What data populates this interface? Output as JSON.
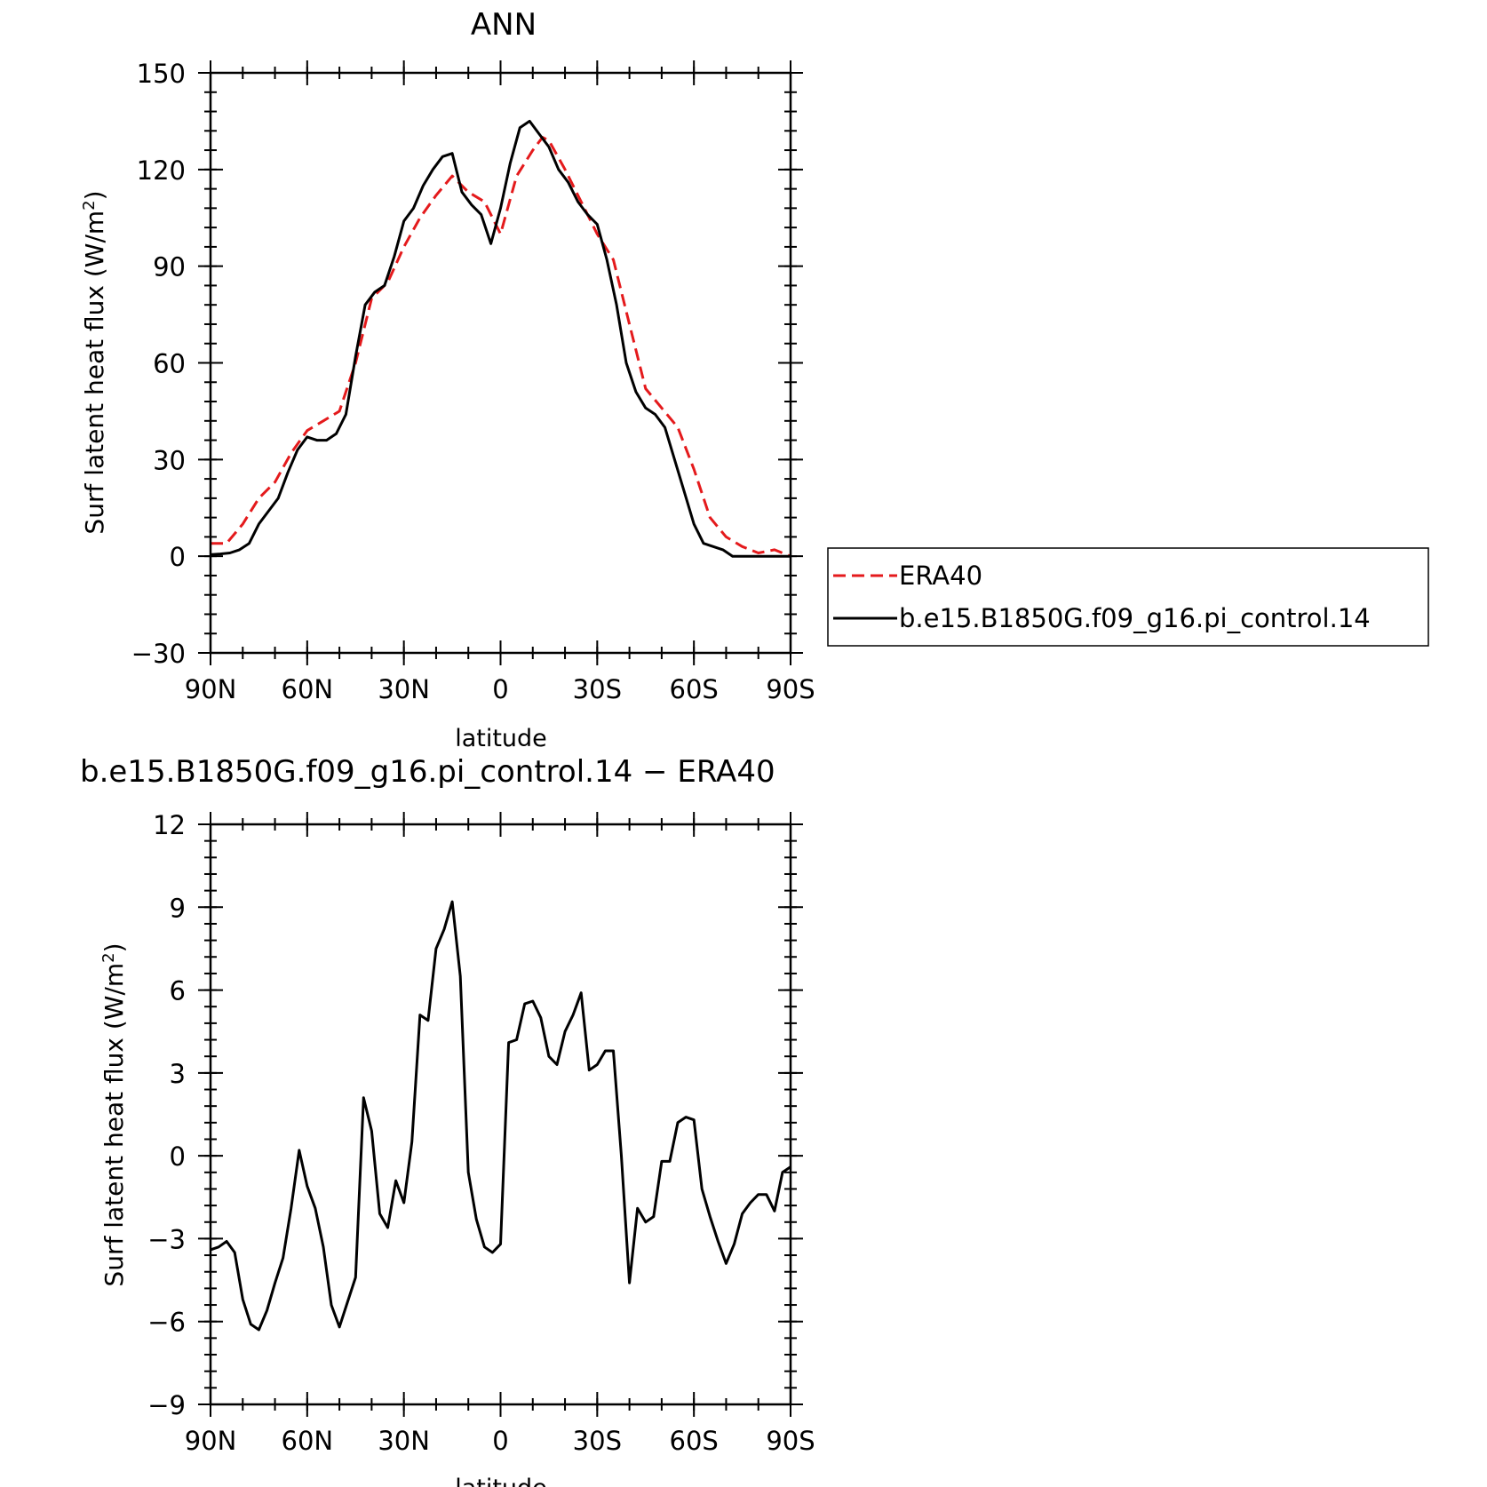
{
  "chart_data": [
    {
      "type": "line",
      "title": "ANN",
      "xlabel": "latitude",
      "ylabel": "Surf latent heat flux (W/m²)",
      "ylabel_main": "Surf latent heat flux (W/m",
      "ylabel_sup": "2",
      "ylabel_close": ")",
      "xlim": [
        90,
        -90
      ],
      "ylim": [
        -30,
        150
      ],
      "x_ticks": [
        90,
        60,
        30,
        0,
        -30,
        -60,
        -90
      ],
      "x_tick_labels": [
        "90N",
        "60N",
        "30N",
        "0",
        "30S",
        "60S",
        "90S"
      ],
      "y_ticks": [
        -30,
        0,
        30,
        60,
        90,
        120,
        150
      ],
      "y_tick_labels": [
        "−30",
        "0",
        "30",
        "60",
        "90",
        "120",
        "150"
      ],
      "legend_position": "right",
      "series": [
        {
          "name": "ERA40",
          "color": "#e41a1c",
          "style": "dashed",
          "x": [
            90,
            85,
            80,
            75,
            70,
            65,
            60,
            55,
            50,
            45,
            40,
            35,
            30,
            25,
            20,
            15,
            13,
            10,
            5,
            0,
            -5,
            -10,
            -13,
            -15,
            -20,
            -25,
            -30,
            -35,
            -40,
            -45,
            -50,
            -55,
            -60,
            -65,
            -70,
            -75,
            -80,
            -85,
            -90
          ],
          "y": [
            4,
            4,
            10,
            18,
            23,
            32,
            39,
            42,
            45,
            60,
            80,
            85,
            96,
            105,
            112,
            118,
            116,
            113,
            110,
            100,
            118,
            126,
            130,
            129,
            120,
            110,
            100,
            92,
            72,
            52,
            46,
            40,
            27,
            12,
            6,
            3,
            1,
            2,
            0
          ],
          "x_fine": [
            90,
            87,
            84,
            81,
            78,
            75,
            72,
            69,
            66,
            63,
            60,
            57,
            54,
            51,
            48,
            45,
            42,
            39,
            36,
            33,
            30,
            27,
            24,
            21,
            18,
            15,
            12,
            9,
            6,
            3,
            0,
            -3,
            -6,
            -9,
            -12,
            -15,
            -18,
            -21,
            -24,
            -27,
            -30,
            -33,
            -36,
            -39,
            -42,
            -45,
            -48,
            -51,
            -54,
            -57,
            -60,
            -63,
            -66,
            -69,
            -72,
            -75,
            -78,
            -81,
            -84,
            -87,
            -90
          ]
        },
        {
          "name": "b.e15.B1850G.f09_g16.pi_control.14",
          "color": "#000000",
          "style": "solid",
          "x": [
            90,
            87,
            84,
            81,
            78,
            75,
            72,
            69,
            66,
            63,
            60,
            57,
            54,
            51,
            48,
            45,
            42,
            39,
            36,
            33,
            30,
            27,
            24,
            21,
            18,
            15,
            12,
            9,
            6,
            3,
            0,
            -3,
            -6,
            -9,
            -12,
            -15,
            -18,
            -21,
            -24,
            -27,
            -30,
            -33,
            -36,
            -39,
            -42,
            -45,
            -48,
            -51,
            -54,
            -57,
            -60,
            -63,
            -66,
            -69,
            -72,
            -75,
            -78,
            -81,
            -84,
            -87,
            -90
          ],
          "y": [
            0.5,
            0.7,
            1,
            2,
            4,
            10,
            14,
            18,
            26,
            33,
            37,
            36,
            36,
            38,
            44,
            62,
            78,
            82,
            84,
            93,
            104,
            108,
            115,
            120,
            124,
            125,
            113,
            109,
            106,
            97,
            108,
            122,
            133,
            135,
            131,
            127,
            120,
            116,
            110,
            106,
            103,
            92,
            78,
            60,
            51,
            46,
            44,
            40,
            30,
            20,
            10,
            4,
            3,
            2,
            0,
            0,
            0,
            0,
            0,
            0,
            0
          ]
        }
      ]
    },
    {
      "type": "line",
      "title": "b.e15.B1850G.f09_g16.pi_control.14 − ERA40",
      "xlabel": "latitude",
      "ylabel": "Surf latent heat flux (W/m²)",
      "ylabel_main": "Surf latent heat flux (W/m",
      "ylabel_sup": "2",
      "ylabel_close": ")",
      "xlim": [
        90,
        -90
      ],
      "ylim": [
        -9,
        12
      ],
      "x_ticks": [
        90,
        60,
        30,
        0,
        -30,
        -60,
        -90
      ],
      "x_tick_labels": [
        "90N",
        "60N",
        "30N",
        "0",
        "30S",
        "60S",
        "90S"
      ],
      "y_ticks": [
        -9,
        -6,
        -3,
        0,
        3,
        6,
        9,
        12
      ],
      "y_tick_labels": [
        "−9",
        "−6",
        "−3",
        "0",
        "3",
        "6",
        "9",
        "12"
      ],
      "series": [
        {
          "name": "",
          "color": "#000000",
          "style": "solid",
          "x": [
            90,
            87.5,
            85,
            82.5,
            80,
            77.5,
            75,
            72.5,
            70,
            67.5,
            65,
            62.5,
            60,
            57.5,
            55,
            52.5,
            50,
            47.5,
            45,
            42.5,
            40,
            37.5,
            35,
            32.5,
            30,
            27.5,
            25,
            22.5,
            20,
            17.5,
            15,
            12.5,
            10,
            7.5,
            5,
            2.5,
            0,
            -2.5,
            -5,
            -7.5,
            -10,
            -12.5,
            -15,
            -17.5,
            -20,
            -22.5,
            -25,
            -27.5,
            -30,
            -32.5,
            -35,
            -37.5,
            -40,
            -42.5,
            -45,
            -47.5,
            -50,
            -52.5,
            -55,
            -57.5,
            -60,
            -62.5,
            -65,
            -67.5,
            -70,
            -72.5,
            -75,
            -77.5,
            -80,
            -82.5,
            -85,
            -87.5,
            -90
          ],
          "y": [
            -3.4,
            -3.3,
            -3.1,
            -3.5,
            -5.2,
            -6.1,
            -6.3,
            -5.6,
            -4.6,
            -3.7,
            -1.9,
            0.2,
            -1.1,
            -1.9,
            -3.3,
            -5.4,
            -6.2,
            -5.3,
            -4.4,
            2.1,
            0.9,
            -2.1,
            -2.6,
            -0.9,
            -1.7,
            0.5,
            5.1,
            4.9,
            7.5,
            8.2,
            9.2,
            6.5,
            -0.6,
            -2.3,
            -3.3,
            -3.5,
            -3.2,
            4.1,
            4.2,
            5.5,
            5.6,
            5.0,
            3.6,
            3.3,
            4.5,
            5.1,
            5.9,
            3.1,
            3.3,
            3.8,
            3.8,
            0.0,
            -4.6,
            -1.9,
            -2.4,
            -2.2,
            -0.2,
            -0.2,
            1.2,
            1.4,
            1.3,
            -1.2,
            -2.2,
            -3.1,
            -3.9,
            -3.2,
            -2.1,
            -1.7,
            -1.4,
            -1.4,
            -2.0,
            -0.6,
            -0.4
          ]
        }
      ]
    }
  ]
}
